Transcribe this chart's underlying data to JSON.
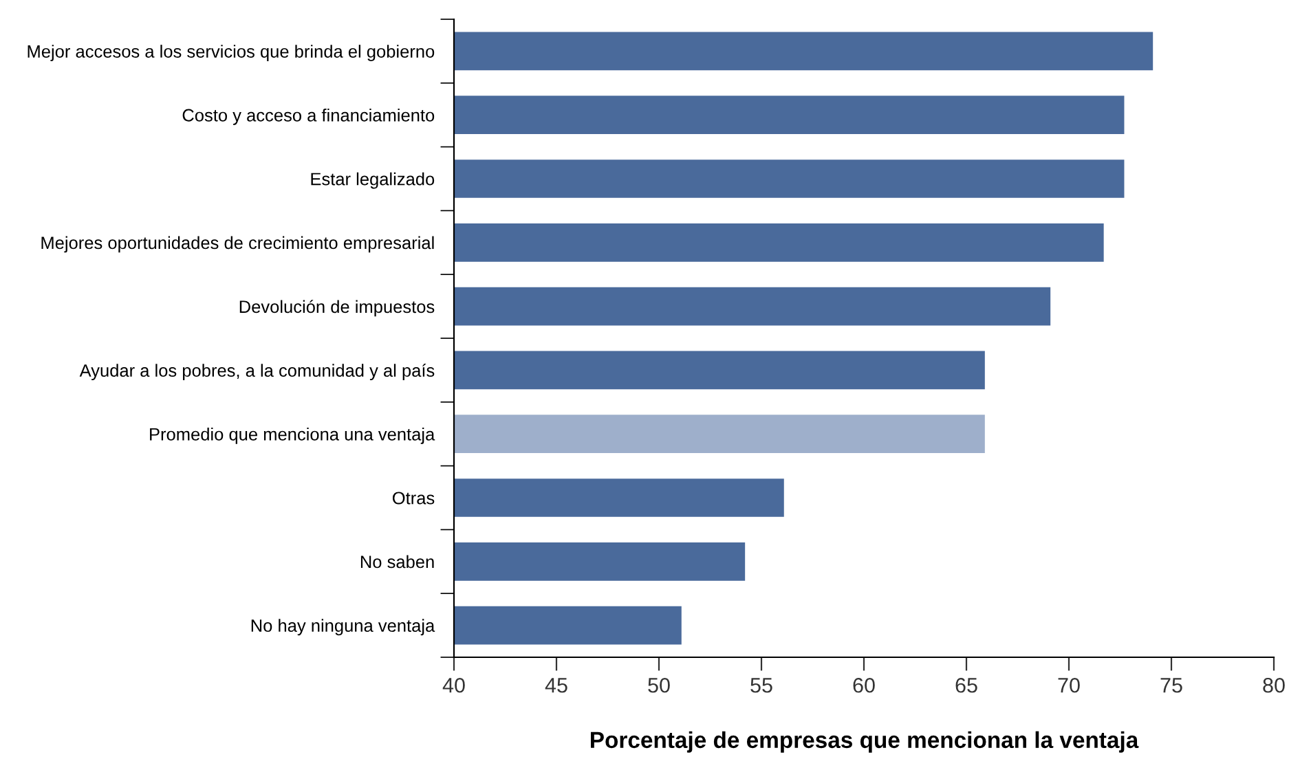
{
  "chart_data": {
    "type": "bar",
    "orientation": "horizontal",
    "categories": [
      "Mejor accesos a los servicios que brinda el gobierno",
      "Costo y acceso a financiamiento",
      "Estar legalizado",
      "Mejores oportunidades de crecimiento empresarial",
      "Devolución de impuestos",
      "Ayudar a los pobres, a la comunidad y al país",
      "Promedio que menciona una ventaja",
      "Otras",
      "No saben",
      "No hay ninguna ventaja"
    ],
    "values": [
      74.1,
      72.7,
      72.7,
      71.7,
      69.1,
      65.9,
      65.9,
      56.1,
      54.2,
      51.1
    ],
    "colors": [
      "#4a6a9b",
      "#4a6a9b",
      "#4a6a9b",
      "#4a6a9b",
      "#4a6a9b",
      "#4a6a9b",
      "#9eafcb",
      "#4a6a9b",
      "#4a6a9b",
      "#4a6a9b"
    ],
    "xlim": [
      40,
      80
    ],
    "xticks": [
      40,
      45,
      50,
      55,
      60,
      65,
      70,
      75,
      80
    ],
    "xlabel": "Porcentaje de empresas que mencionan la ventaja",
    "grid": false,
    "legend": false
  }
}
